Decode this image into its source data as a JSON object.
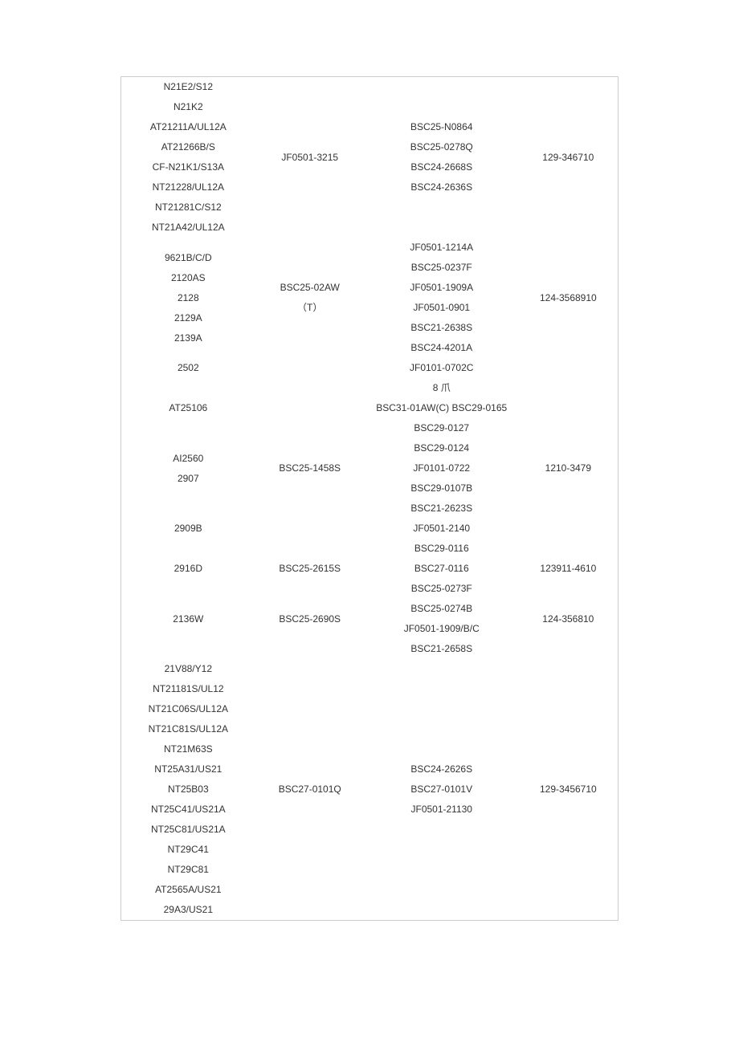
{
  "rows": [
    {
      "c1": [
        "N21E2/S12",
        "N21K2",
        "AT21211A/UL12A",
        "AT21266B/S",
        "CF-N21K1/S13A",
        "NT21228/UL12A",
        "NT21281C/S12",
        "NT21A42/UL12A"
      ],
      "c2": [
        "JF0501-3215"
      ],
      "c3": [
        "BSC25-N0864",
        "BSC25-0278Q",
        "BSC24-2668S",
        "BSC24-2636S"
      ],
      "c4": [
        "129-346710"
      ]
    },
    {
      "c1": [
        "9621B/C/D",
        "2120AS",
        "2128",
        "2129A",
        "2139A"
      ],
      "c2": [
        "BSC25-02AW",
        "（T）"
      ],
      "c3": [
        "JF0501-1214A",
        "BSC25-0237F",
        "JF0501-1909A",
        "JF0501-0901",
        "BSC21-2638S",
        "BSC24-4201A"
      ],
      "c4": [
        "124-3568910"
      ]
    },
    {
      "c1": [
        "2502"
      ],
      "c2": [],
      "c3": [
        "JF0101-0702C"
      ],
      "c4": []
    },
    {
      "c1": [
        "AT25106"
      ],
      "c2": [],
      "c3": [
        "8 爪",
        "BSC31-01AW(C) BSC29-0165",
        "BSC29-0127"
      ],
      "c4": []
    },
    {
      "c1": [
        "AI2560",
        "2907"
      ],
      "c2": [
        "BSC25-1458S"
      ],
      "c3": [
        "BSC29-0124",
        "JF0101-0722",
        "BSC29-0107B"
      ],
      "c4": [
        "1210-3479"
      ]
    },
    {
      "c1": [
        "2909B"
      ],
      "c2": [],
      "c3": [
        "BSC21-2623S",
        "JF0501-2140",
        "BSC29-0116"
      ],
      "c4": []
    },
    {
      "c1": [
        "2916D"
      ],
      "c2": [
        "BSC25-2615S"
      ],
      "c3": [
        "BSC27-0116"
      ],
      "c4": [
        "123911-4610"
      ]
    },
    {
      "c1": [
        "2136W"
      ],
      "c2": [
        "BSC25-2690S"
      ],
      "c3": [
        "BSC25-0273F",
        "BSC25-0274B",
        "JF0501-1909/B/C",
        "BSC21-2658S"
      ],
      "c4": [
        "124-356810"
      ]
    },
    {
      "c1": [
        "21V88/Y12",
        "NT21181S/UL12",
        "NT21C06S/UL12A",
        "NT21C81S/UL12A",
        "NT21M63S",
        "NT25A31/US21",
        "NT25B03",
        "NT25C41/US21A",
        "NT25C81/US21A",
        "NT29C41",
        "NT29C81",
        "AT2565A/US21",
        "29A3/US21"
      ],
      "c2": [
        "BSC27-0101Q"
      ],
      "c3": [
        "BSC24-2626S",
        "BSC27-0101V",
        "JF0501-21130"
      ],
      "c4": [
        "129-3456710"
      ]
    }
  ]
}
